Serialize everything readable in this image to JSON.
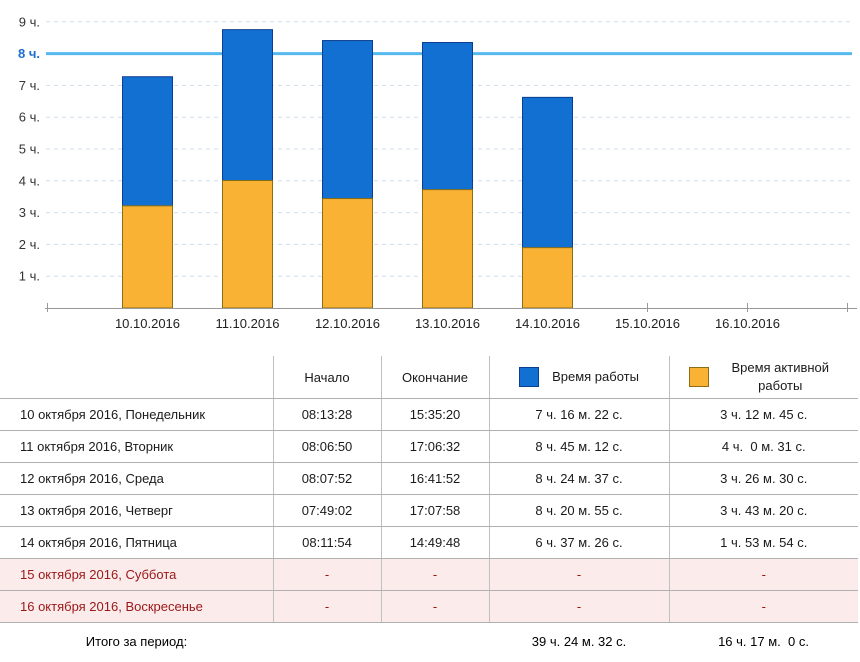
{
  "chart_data": {
    "type": "bar",
    "variant": "overlaid-stacked-columns",
    "title": "",
    "xlabel": "",
    "ylabel": "",
    "categories": [
      "10.10.2016",
      "11.10.2016",
      "12.10.2016",
      "13.10.2016",
      "14.10.2016",
      "15.10.2016",
      "16.10.2016"
    ],
    "series": [
      {
        "name": "Время работы",
        "color": "#1170d2",
        "border": "#0b3d91",
        "values_hours": [
          7.2728,
          8.7533,
          8.4103,
          8.3486,
          6.6239,
          0,
          0
        ]
      },
      {
        "name": "Время активной работы",
        "color": "#f9b233",
        "border": "#8a6d15",
        "values_hours": [
          3.2125,
          4.0086,
          3.4417,
          3.7222,
          1.8983,
          0,
          0
        ]
      }
    ],
    "y_ticks": [
      {
        "value": 1,
        "label": "1 ч."
      },
      {
        "value": 2,
        "label": "2 ч."
      },
      {
        "value": 3,
        "label": "3 ч."
      },
      {
        "value": 4,
        "label": "4 ч."
      },
      {
        "value": 5,
        "label": "5 ч."
      },
      {
        "value": 6,
        "label": "6 ч."
      },
      {
        "value": 7,
        "label": "7 ч."
      },
      {
        "value": 8,
        "label": "8 ч."
      },
      {
        "value": 9,
        "label": "9 ч."
      }
    ],
    "ylim": [
      0,
      9.6
    ],
    "grid": "horizontal-dashed",
    "reference_line": {
      "value": 8,
      "label": "8 ч.",
      "color": "#55b9ed",
      "label_color": "#1a6fd0"
    },
    "legend_position": "table-header"
  },
  "table": {
    "headers": {
      "date": "",
      "start": "Начало",
      "end": "Окончание",
      "work": "Время работы",
      "active": "Время активной работы"
    },
    "rows": [
      {
        "date": "10 октября 2016, Понедельник",
        "start": "08:13:28",
        "end": "15:35:20",
        "work": "7 ч. 16 м. 22 с.",
        "active": "3 ч. 12 м. 45 с.",
        "weekend": false
      },
      {
        "date": "11 октября 2016, Вторник",
        "start": "08:06:50",
        "end": "17:06:32",
        "work": "8 ч. 45 м. 12 с.",
        "active": "4 ч.  0 м. 31 с.",
        "weekend": false
      },
      {
        "date": "12 октября 2016, Среда",
        "start": "08:07:52",
        "end": "16:41:52",
        "work": "8 ч. 24 м. 37 с.",
        "active": "3 ч. 26 м. 30 с.",
        "weekend": false
      },
      {
        "date": "13 октября 2016, Четверг",
        "start": "07:49:02",
        "end": "17:07:58",
        "work": "8 ч. 20 м. 55 с.",
        "active": "3 ч. 43 м. 20 с.",
        "weekend": false
      },
      {
        "date": "14 октября 2016, Пятница",
        "start": "08:11:54",
        "end": "14:49:48",
        "work": "6 ч. 37 м. 26 с.",
        "active": "1 ч. 53 м. 54 с.",
        "weekend": false
      },
      {
        "date": "15 октября 2016, Суббота",
        "start": "-",
        "end": "-",
        "work": "-",
        "active": "-",
        "weekend": true
      },
      {
        "date": "16 октября 2016, Воскресенье",
        "start": "-",
        "end": "-",
        "work": "-",
        "active": "-",
        "weekend": true
      }
    ],
    "total": {
      "label": "Итого за период:",
      "work": "39 ч. 24 м. 32 с.",
      "active": "16 ч. 17 м.  0 с."
    },
    "colors": {
      "weekend_bg": "#fbebeb",
      "weekend_text": "#9b1717",
      "border": "#b0b0b0"
    }
  }
}
